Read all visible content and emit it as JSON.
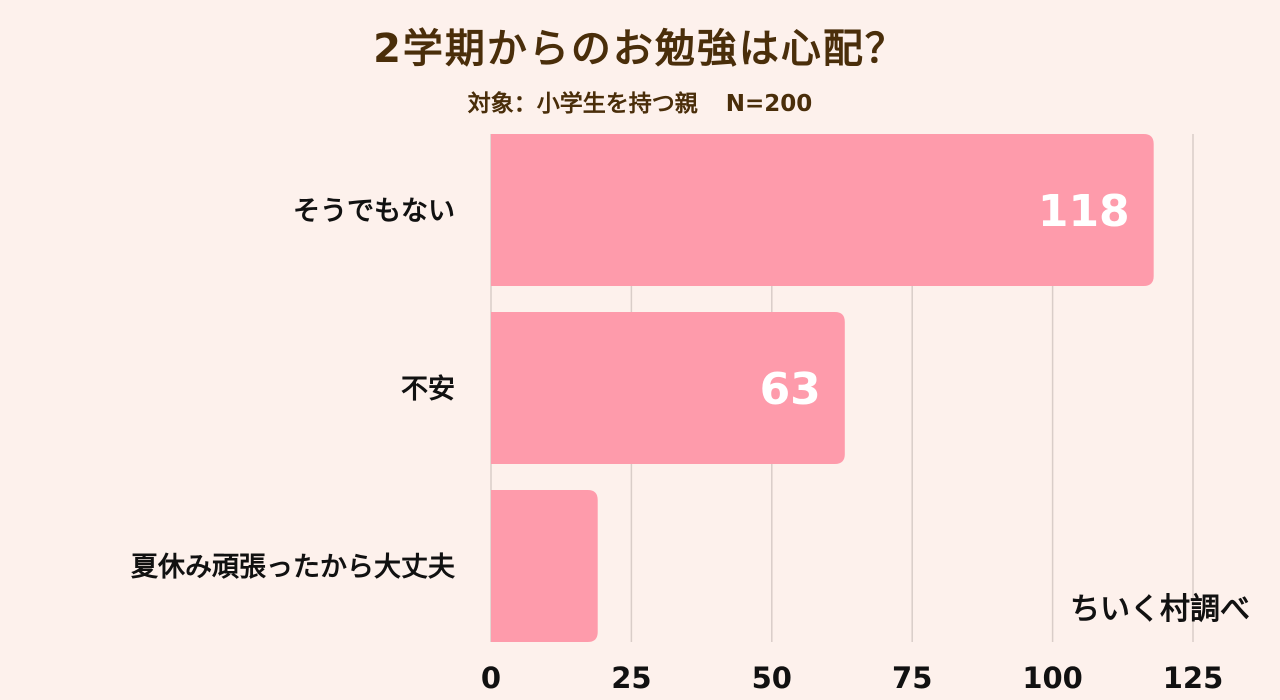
{
  "chart_data": {
    "type": "bar",
    "orientation": "horizontal",
    "title": "2学期からのお勉強は心配？",
    "subtitle": "対象：小学生を持つ親",
    "sample": "N=200",
    "categories": [
      "そうでもない",
      "不安",
      "夏休み頑張ったから大丈夫"
    ],
    "values": [
      118,
      63,
      19
    ],
    "data_labels": [
      "118",
      "63",
      ""
    ],
    "xlim": [
      0,
      125
    ],
    "xticks": [
      "0",
      "25",
      "50",
      "75",
      "100",
      "125"
    ],
    "grid": true,
    "colors": {
      "bar": "#fe9bab",
      "label": "#ffffff",
      "grid": "#d9cdc8",
      "text": "#111111",
      "title": "#4a2e0a",
      "background": "#fdf1ec"
    }
  },
  "credit": "ちいく村調べ"
}
